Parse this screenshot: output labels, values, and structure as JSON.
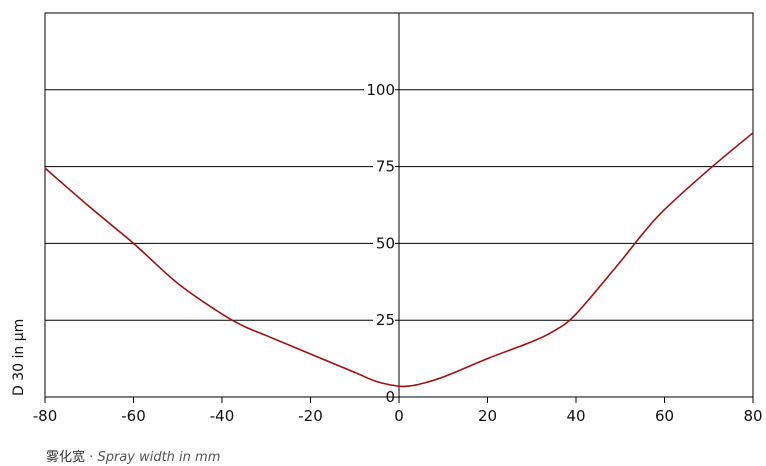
{
  "chart_data": {
    "type": "line",
    "xlabel_cn": "雾化宽",
    "xlabel_sep": "·",
    "xlabel_en": "Spray width in mm",
    "ylabel": "D 30 in µm",
    "xlim": [
      -80,
      80
    ],
    "ylim": [
      0,
      125
    ],
    "x_ticks": [
      -80,
      -60,
      -40,
      -20,
      0,
      20,
      40,
      60,
      80
    ],
    "y_ticks": [
      0,
      25,
      50,
      75,
      100
    ],
    "grid": "horizontal",
    "line_color": "#a01010",
    "series": [
      {
        "x": [
          -80,
          -70,
          -60,
          -50,
          -40,
          -35,
          -30,
          -20,
          -10,
          -5,
          0,
          3,
          5,
          10,
          20,
          30,
          35,
          40,
          50,
          55,
          60,
          70,
          80
        ],
        "y": [
          74.5,
          62,
          50,
          37,
          27,
          23,
          20,
          14,
          8,
          5,
          3.5,
          3.7,
          4.3,
          6.5,
          12.5,
          18,
          21.5,
          27,
          44,
          53,
          61,
          74,
          86
        ]
      }
    ]
  }
}
